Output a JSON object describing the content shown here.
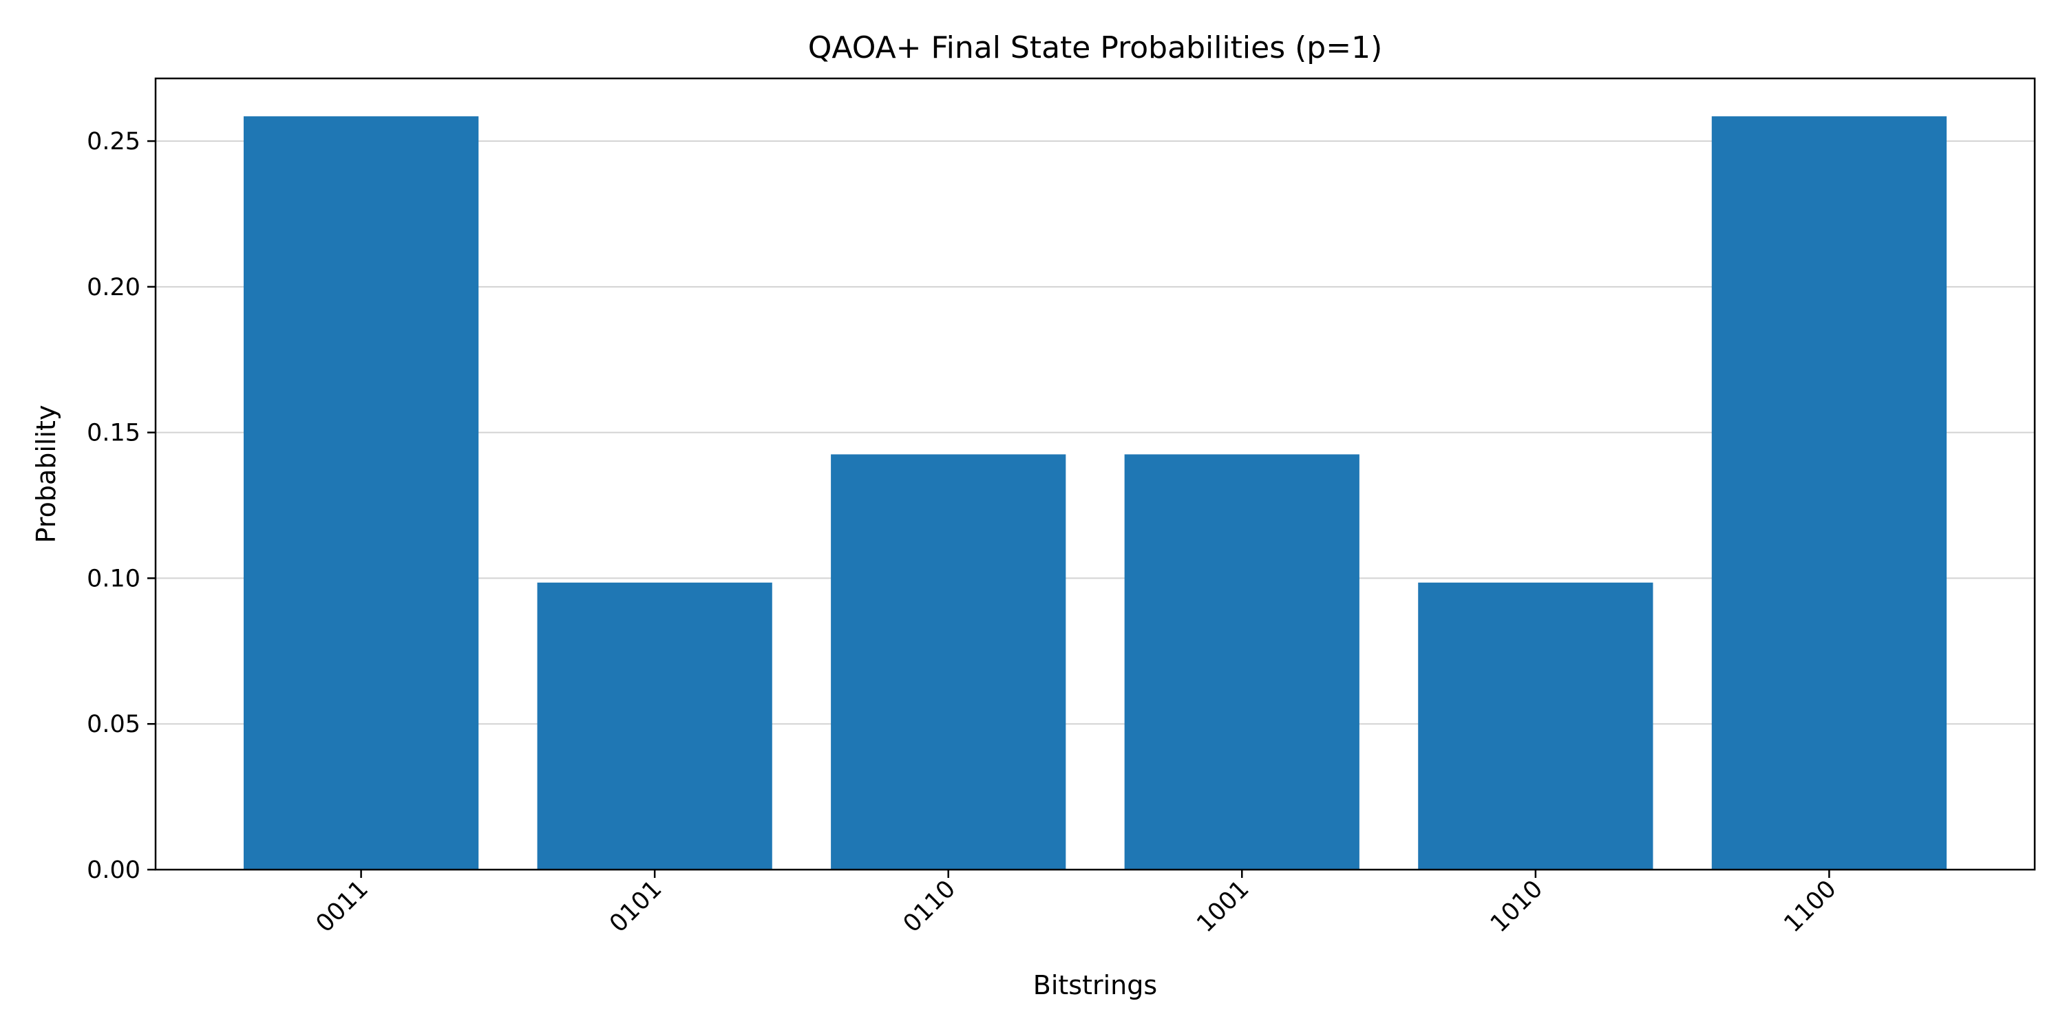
{
  "chart_data": {
    "type": "bar",
    "title": "QAOA+ Final State Probabilities (p=1)",
    "xlabel": "Bitstrings",
    "ylabel": "Probability",
    "categories": [
      "0011",
      "0101",
      "0110",
      "1001",
      "1010",
      "1100"
    ],
    "values": [
      0.2585,
      0.0985,
      0.1425,
      0.1425,
      0.0985,
      0.2585
    ],
    "ylim": [
      0,
      0.2715
    ],
    "yticks": [
      0.0,
      0.05,
      0.1,
      0.15,
      0.2,
      0.25
    ],
    "ytick_labels": [
      "0.00",
      "0.05",
      "0.10",
      "0.15",
      "0.20",
      "0.25"
    ],
    "grid": "y",
    "bar_color": "#1f77b4",
    "grid_color": "#d3d3d3",
    "xtick_rotation": -45
  }
}
